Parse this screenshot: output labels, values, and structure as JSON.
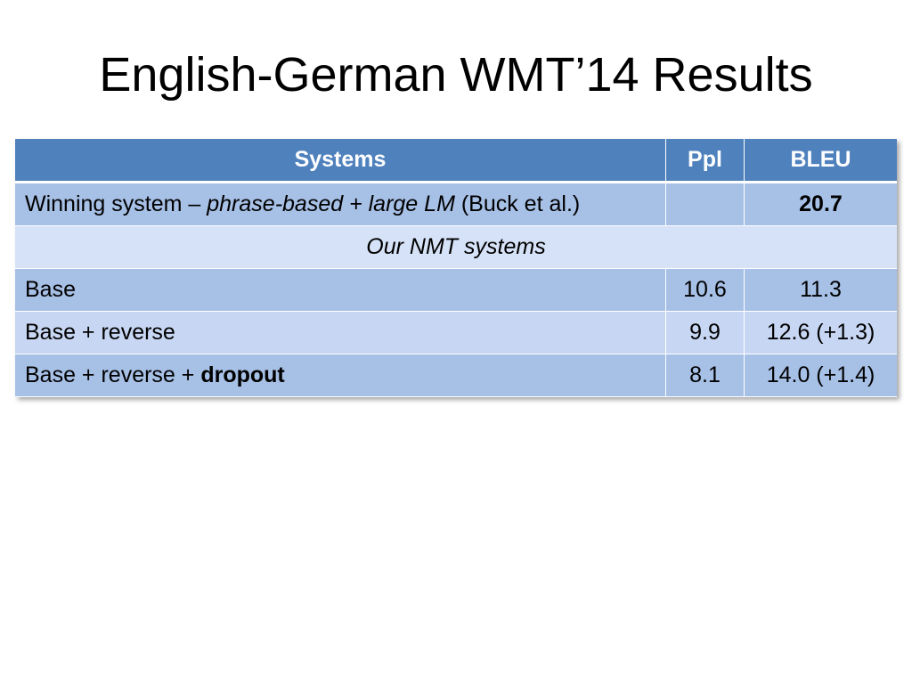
{
  "slide": {
    "title": "English-German WMT’14 Results"
  },
  "table": {
    "headers": {
      "systems": "Systems",
      "ppl": "Ppl",
      "bleu": "BLEU"
    },
    "winning": {
      "prefix": "Winning system – ",
      "emph": "phrase-based + large LM",
      "suffix": " (Buck et al.)",
      "ppl": "",
      "bleu": "20.7"
    },
    "section_label": "Our NMT systems",
    "rows": [
      {
        "system": "Base",
        "system_bold": "",
        "ppl": "10.6",
        "bleu": "11.3"
      },
      {
        "system": "Base + reverse",
        "system_bold": "",
        "ppl": "9.9",
        "bleu": "12.6 (+1.3)"
      },
      {
        "system": "Base + reverse + ",
        "system_bold": "dropout",
        "ppl": "8.1",
        "bleu": "14.0 (+1.4)"
      }
    ]
  },
  "colors": {
    "header": "#4f81bd",
    "row_dark": "#a7c0e6",
    "row_light": "#cfdcf4"
  }
}
